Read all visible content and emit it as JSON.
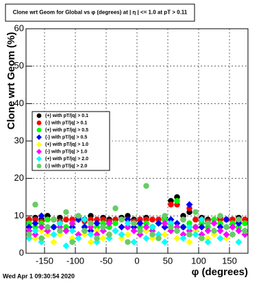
{
  "chart_data": {
    "type": "scatter",
    "title": "Clone wrt Geom for Global vs φ (degrees) at | η | <= 1.0 at pT > 0.11",
    "x_label": "φ (degrees)",
    "y_label": "Clone wrt Geom (%)",
    "footer": "Wed Apr  1 09:30:54 2020",
    "xlim": [
      -180,
      180
    ],
    "ylim": [
      0,
      60
    ],
    "xticks": [
      -150,
      -100,
      -50,
      0,
      50,
      100,
      150
    ],
    "yticks": [
      0,
      10,
      20,
      30,
      40,
      50,
      60
    ],
    "grid": true,
    "legend": "left",
    "x": [
      -175,
      -165,
      -155,
      -145,
      -135,
      -125,
      -115,
      -105,
      -95,
      -85,
      -75,
      -65,
      -55,
      -45,
      -35,
      -25,
      -15,
      -5,
      5,
      15,
      25,
      35,
      45,
      55,
      65,
      75,
      85,
      95,
      105,
      115,
      125,
      135,
      145,
      155,
      165,
      175
    ],
    "series": [
      {
        "name": "(+) with pT/|q| > 0.1",
        "color": "#000000",
        "marker": "circle",
        "values": [
          9,
          9.5,
          9,
          10,
          9,
          9.5,
          9,
          9,
          9.5,
          9,
          10,
          9,
          9.5,
          9,
          9,
          9.5,
          10,
          9,
          9,
          9.5,
          9,
          9,
          9.5,
          14,
          15,
          10,
          11,
          9,
          9.5,
          9,
          9,
          9.5,
          9,
          9,
          9.5,
          9
        ]
      },
      {
        "name": "(-) with pT/|q| > 0.1",
        "color": "#ff0000",
        "marker": "circle",
        "values": [
          9,
          9,
          8.5,
          9,
          9,
          8.5,
          9,
          9,
          9,
          8.5,
          9,
          9,
          9,
          8.5,
          9,
          9,
          9,
          8.5,
          9,
          9,
          9,
          9,
          9,
          13,
          13,
          9,
          12,
          9,
          9,
          8.5,
          9,
          9,
          9,
          9,
          8.5,
          9
        ]
      },
      {
        "name": "(+) with pT/|q| > 0.5",
        "color": "#00ff00",
        "marker": "circle",
        "values": [
          8,
          7,
          8,
          9,
          7,
          8,
          7,
          8,
          9,
          7,
          8,
          7,
          8,
          7,
          8,
          9,
          7,
          8,
          7,
          8,
          7,
          8,
          9,
          8,
          14,
          7,
          8,
          7,
          8,
          7,
          9,
          8,
          7,
          8,
          7,
          8
        ]
      },
      {
        "name": "(-) with pT/|q| > 0.5",
        "color": "#0000ff",
        "marker": "diamond",
        "values": [
          7,
          8,
          10,
          6,
          7,
          8,
          6,
          7,
          9,
          7,
          6,
          8,
          7,
          8,
          6,
          7,
          9,
          7,
          8,
          6,
          7,
          8,
          7,
          9,
          8,
          7,
          13,
          6,
          7,
          8,
          6,
          7,
          9,
          7,
          8,
          6
        ]
      },
      {
        "name": "(+) with pT/|q| > 1.0",
        "color": "#ffff00",
        "marker": "diamond",
        "values": [
          5,
          4,
          6,
          5,
          3,
          5,
          6,
          4,
          5,
          5,
          3,
          6,
          4,
          5,
          6,
          4,
          5,
          3,
          5,
          6,
          4,
          5,
          5,
          6,
          4,
          5,
          3,
          6,
          5,
          4,
          5,
          6,
          4,
          5,
          3,
          5
        ]
      },
      {
        "name": "(-) with pT/|q| > 1.0",
        "color": "#ff00ff",
        "marker": "diamond",
        "values": [
          6,
          5,
          7,
          6,
          5,
          7,
          6,
          8,
          5,
          6,
          7,
          5,
          6,
          8,
          6,
          5,
          7,
          6,
          5,
          7,
          6,
          5,
          8,
          6,
          7,
          5,
          6,
          7,
          5,
          6,
          8,
          6,
          5,
          7,
          6,
          5
        ]
      },
      {
        "name": "(+) with pT/|q| > 2.0",
        "color": "#00ffff",
        "marker": "diamond",
        "values": [
          4,
          6,
          3,
          7,
          5,
          8,
          2,
          6,
          4,
          9,
          5,
          3,
          7,
          4,
          6,
          5,
          8,
          3,
          6,
          4,
          7,
          5,
          3,
          8,
          6,
          4,
          7,
          5,
          9,
          3,
          6,
          4,
          7,
          5,
          3,
          6
        ]
      },
      {
        "name": "(-) with pT/|q| > 2.0",
        "color": "#66cc66",
        "marker": "circle",
        "values": [
          5,
          13,
          4,
          7,
          9,
          6,
          11,
          3,
          10,
          6,
          8,
          4,
          7,
          5,
          12,
          9,
          3,
          8,
          6,
          18,
          5,
          4,
          10,
          7,
          6,
          9,
          5,
          11,
          4,
          8,
          6,
          10,
          7,
          5,
          9,
          6
        ]
      }
    ]
  }
}
